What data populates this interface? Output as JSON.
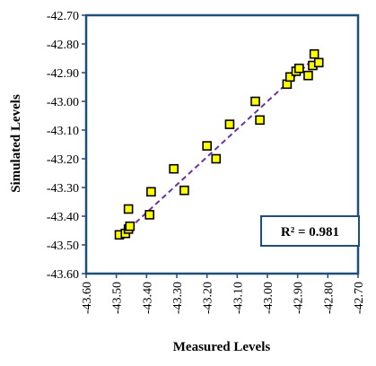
{
  "chart_data": {
    "type": "scatter",
    "xlabel": "Measured Levels",
    "ylabel": "Simulated Levels",
    "xlim": [
      -43.6,
      -42.7
    ],
    "ylim": [
      -43.6,
      -42.7
    ],
    "x_ticks": [
      "-43.60",
      "-43.50",
      "-43.40",
      "-43.30",
      "-43.20",
      "-43.10",
      "-43.00",
      "-42.90",
      "-42.80",
      "-42.70"
    ],
    "y_ticks": [
      "-42.70",
      "-42.80",
      "-42.90",
      "-43.00",
      "-43.10",
      "-43.20",
      "-43.30",
      "-43.40",
      "-43.50",
      "-43.60"
    ],
    "grid": false,
    "legend": "none",
    "marker": {
      "shape": "square",
      "fill": "#ffff00",
      "stroke": "#000000"
    },
    "trendline": {
      "style": "dashed",
      "color": "#7030a0",
      "from": [
        -43.48,
        -43.465
      ],
      "to": [
        -42.84,
        -42.845
      ]
    },
    "annotation": "R² = 0.981",
    "points": [
      {
        "x": -43.49,
        "y": -43.465
      },
      {
        "x": -43.47,
        "y": -43.46
      },
      {
        "x": -43.46,
        "y": -43.445
      },
      {
        "x": -43.455,
        "y": -43.435
      },
      {
        "x": -43.46,
        "y": -43.375
      },
      {
        "x": -43.39,
        "y": -43.395
      },
      {
        "x": -43.385,
        "y": -43.315
      },
      {
        "x": -43.31,
        "y": -43.235
      },
      {
        "x": -43.275,
        "y": -43.31
      },
      {
        "x": -43.2,
        "y": -43.155
      },
      {
        "x": -43.17,
        "y": -43.2
      },
      {
        "x": -43.125,
        "y": -43.08
      },
      {
        "x": -43.04,
        "y": -43.0
      },
      {
        "x": -43.025,
        "y": -43.065
      },
      {
        "x": -42.935,
        "y": -42.94
      },
      {
        "x": -42.925,
        "y": -42.915
      },
      {
        "x": -42.905,
        "y": -42.895
      },
      {
        "x": -42.895,
        "y": -42.885
      },
      {
        "x": -42.865,
        "y": -42.91
      },
      {
        "x": -42.85,
        "y": -42.875
      },
      {
        "x": -42.845,
        "y": -42.835
      },
      {
        "x": -42.83,
        "y": -42.865
      }
    ]
  }
}
